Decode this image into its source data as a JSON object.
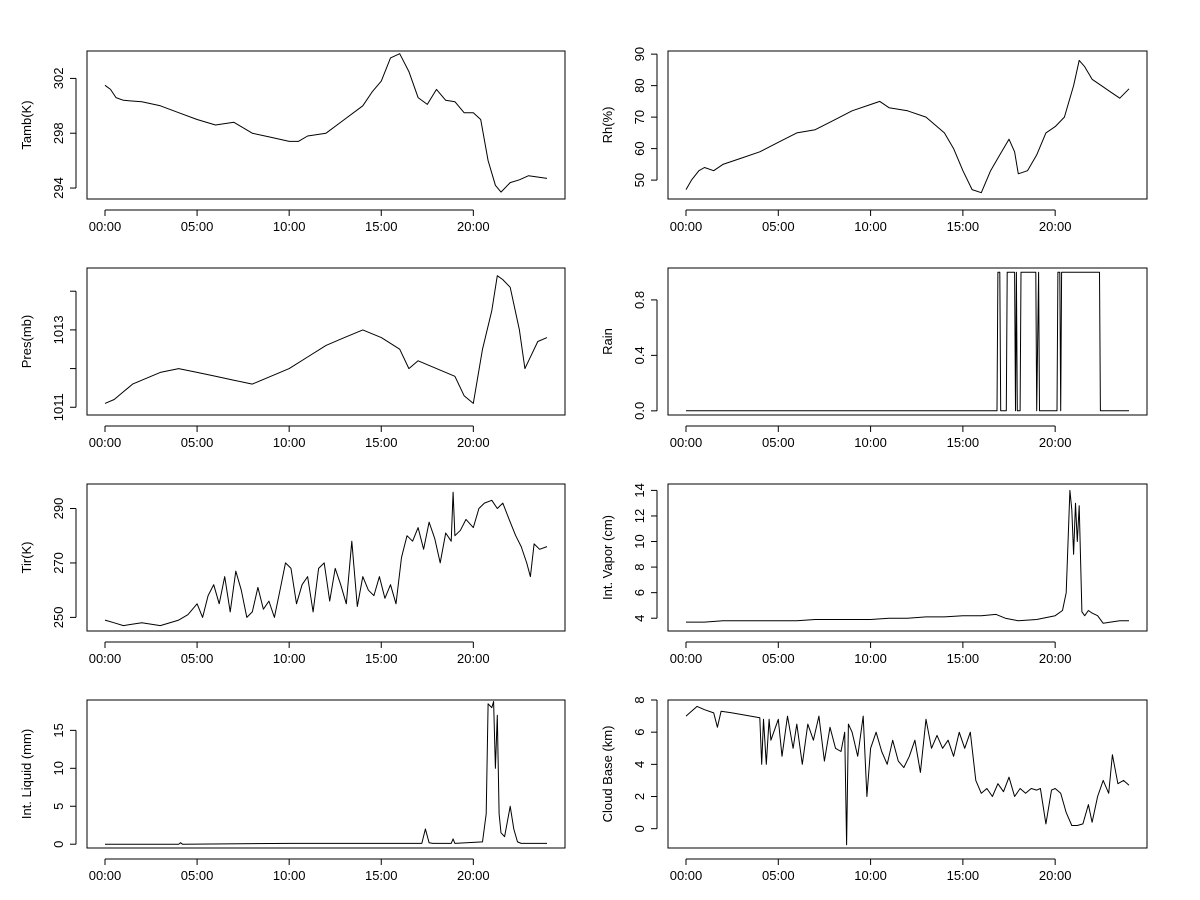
{
  "chart_data": [
    {
      "type": "line",
      "title": "",
      "xlabel": "",
      "ylabel": "Tamb(K)",
      "xlim": [
        0,
        24
      ],
      "ylim": [
        293.2,
        304.0
      ],
      "x_ticks": [
        0,
        5,
        10,
        15,
        20
      ],
      "x_tick_labels": [
        "00:00",
        "05:00",
        "10:00",
        "15:00",
        "20:00"
      ],
      "y_ticks": [
        294,
        298,
        302
      ],
      "y_tick_labels": [
        "294",
        "298",
        "302"
      ],
      "series": [
        {
          "x": [
            0,
            0.3,
            0.6,
            1,
            2,
            3,
            4,
            5,
            6,
            7,
            8,
            9,
            10,
            10.5,
            11,
            12,
            13,
            14,
            14.5,
            15,
            15.5,
            16,
            16.5,
            17,
            17.5,
            18,
            18.5,
            19,
            19.5,
            20,
            20.4,
            20.8,
            21.2,
            21.5,
            22,
            22.5,
            23,
            24
          ],
          "y": [
            301.5,
            301.2,
            300.6,
            300.4,
            300.3,
            300.0,
            299.5,
            299.0,
            298.6,
            298.8,
            298.0,
            297.7,
            297.4,
            297.4,
            297.8,
            298.0,
            299.0,
            300.0,
            301.0,
            301.8,
            303.5,
            303.8,
            302.5,
            300.6,
            300.1,
            301.2,
            300.4,
            300.3,
            299.5,
            299.5,
            299.0,
            296.0,
            294.2,
            293.7,
            294.4,
            294.6,
            294.9,
            294.7
          ]
        }
      ]
    },
    {
      "type": "line",
      "title": "",
      "xlabel": "",
      "ylabel": "Rh(%)",
      "xlim": [
        0,
        24
      ],
      "ylim": [
        44,
        91
      ],
      "x_ticks": [
        0,
        5,
        10,
        15,
        20
      ],
      "x_tick_labels": [
        "00:00",
        "05:00",
        "10:00",
        "15:00",
        "20:00"
      ],
      "y_ticks": [
        50,
        60,
        70,
        80,
        90
      ],
      "y_tick_labels": [
        "50",
        "60",
        "70",
        "80",
        "90"
      ],
      "series": [
        {
          "x": [
            0,
            0.3,
            0.7,
            1,
            1.5,
            2,
            3,
            4,
            5,
            6,
            7,
            8,
            9,
            10,
            10.5,
            11,
            12,
            13,
            14,
            14.5,
            15,
            15.5,
            16,
            16.5,
            17,
            17.5,
            17.8,
            18,
            18.5,
            19,
            19.5,
            20,
            20.5,
            21,
            21.3,
            21.6,
            22,
            22.5,
            23,
            23.5,
            24
          ],
          "y": [
            47,
            50,
            53,
            54,
            53,
            55,
            57,
            59,
            62,
            65,
            66,
            69,
            72,
            74,
            75,
            73,
            72,
            70,
            65,
            60,
            53,
            47,
            46,
            53,
            58,
            63,
            59,
            52,
            53,
            58,
            65,
            67,
            70,
            80,
            88,
            86,
            82,
            80,
            78,
            76,
            79
          ]
        }
      ]
    },
    {
      "type": "line",
      "title": "",
      "xlabel": "",
      "ylabel": "Pres(mb)",
      "xlim": [
        0,
        24
      ],
      "ylim": [
        1010.8,
        1014.6
      ],
      "x_ticks": [
        0,
        5,
        10,
        15,
        20
      ],
      "x_tick_labels": [
        "00:00",
        "05:00",
        "10:00",
        "15:00",
        "20:00"
      ],
      "y_ticks": [
        1011,
        1012,
        1013,
        1014
      ],
      "y_tick_labels": [
        "1011",
        "",
        "1013",
        ""
      ],
      "series": [
        {
          "x": [
            0,
            0.5,
            1,
            1.5,
            2,
            3,
            4,
            5,
            6,
            7,
            8,
            9,
            10,
            11,
            12,
            13,
            14,
            15,
            16,
            16.5,
            17,
            18,
            19,
            19.5,
            20,
            20.5,
            21,
            21.3,
            21.6,
            22,
            22.5,
            22.8,
            23,
            23.5,
            24
          ],
          "y": [
            1011.1,
            1011.2,
            1011.4,
            1011.6,
            1011.7,
            1011.9,
            1012.0,
            1011.9,
            1011.8,
            1011.7,
            1011.6,
            1011.8,
            1012.0,
            1012.3,
            1012.6,
            1012.8,
            1013.0,
            1012.8,
            1012.5,
            1012.0,
            1012.2,
            1012.0,
            1011.8,
            1011.3,
            1011.1,
            1012.5,
            1013.5,
            1014.4,
            1014.3,
            1014.1,
            1013.0,
            1012.0,
            1012.2,
            1012.7,
            1012.8
          ]
        }
      ]
    },
    {
      "type": "line",
      "title": "",
      "xlabel": "",
      "ylabel": "Rain",
      "xlim": [
        0,
        24
      ],
      "ylim": [
        -0.03,
        1.03
      ],
      "x_ticks": [
        0,
        5,
        10,
        15,
        20
      ],
      "x_tick_labels": [
        "00:00",
        "05:00",
        "10:00",
        "15:00",
        "20:00"
      ],
      "y_ticks": [
        0.0,
        0.4,
        0.8
      ],
      "y_tick_labels": [
        "0.0",
        "0.4",
        "0.8"
      ],
      "series": [
        {
          "x": [
            0,
            16.85,
            16.9,
            17.0,
            17.05,
            17.35,
            17.4,
            17.8,
            17.85,
            17.9,
            17.95,
            18.1,
            18.15,
            18.95,
            19.0,
            19.1,
            19.15,
            20.1,
            20.15,
            20.25,
            20.3,
            20.35,
            20.4,
            22.4,
            22.45,
            24
          ],
          "y": [
            0,
            0,
            1,
            1,
            0,
            0,
            1,
            1,
            0,
            1,
            0,
            0,
            1,
            1,
            0,
            1,
            0,
            0,
            1,
            1,
            0,
            1,
            1,
            1,
            0,
            0
          ]
        }
      ]
    },
    {
      "type": "line",
      "title": "",
      "xlabel": "",
      "ylabel": "Tir(K)",
      "xlim": [
        0,
        24
      ],
      "ylim": [
        245,
        299
      ],
      "x_ticks": [
        0,
        5,
        10,
        15,
        20
      ],
      "x_tick_labels": [
        "00:00",
        "05:00",
        "10:00",
        "15:00",
        "20:00"
      ],
      "y_ticks": [
        250,
        270,
        290
      ],
      "y_tick_labels": [
        "250",
        "270",
        "290"
      ],
      "series": [
        {
          "x": [
            0,
            0.5,
            1,
            2,
            3,
            4,
            4.5,
            5,
            5.3,
            5.6,
            5.9,
            6.2,
            6.5,
            6.8,
            7.1,
            7.4,
            7.7,
            8,
            8.3,
            8.6,
            8.9,
            9.2,
            9.5,
            9.8,
            10.1,
            10.4,
            10.7,
            11,
            11.3,
            11.6,
            11.9,
            12.2,
            12.5,
            12.8,
            13.1,
            13.4,
            13.7,
            14,
            14.3,
            14.6,
            14.9,
            15.2,
            15.5,
            15.8,
            16.1,
            16.4,
            16.7,
            17,
            17.3,
            17.6,
            17.9,
            18.2,
            18.5,
            18.8,
            18.9,
            19,
            19.3,
            19.6,
            20,
            20.3,
            20.6,
            21,
            21.3,
            21.6,
            22,
            22.3,
            22.6,
            22.9,
            23.1,
            23.3,
            23.6,
            24
          ],
          "y": [
            249,
            248,
            247,
            248,
            247,
            249,
            251,
            255,
            250,
            258,
            262,
            255,
            265,
            252,
            267,
            260,
            250,
            252,
            261,
            253,
            256,
            250,
            260,
            270,
            268,
            255,
            262,
            265,
            252,
            268,
            270,
            256,
            268,
            262,
            255,
            278,
            254,
            265,
            260,
            258,
            265,
            257,
            262,
            255,
            272,
            280,
            278,
            283,
            275,
            285,
            279,
            270,
            281,
            278,
            296,
            280,
            282,
            286,
            283,
            290,
            292,
            293,
            290,
            292,
            285,
            280,
            276,
            270,
            265,
            277,
            275,
            276
          ]
        }
      ]
    },
    {
      "type": "line",
      "title": "",
      "xlabel": "",
      "ylabel": "Int. Vapor (cm)",
      "xlim": [
        0,
        24
      ],
      "ylim": [
        3.0,
        14.5
      ],
      "x_ticks": [
        0,
        5,
        10,
        15,
        20
      ],
      "x_tick_labels": [
        "00:00",
        "05:00",
        "10:00",
        "15:00",
        "20:00"
      ],
      "y_ticks": [
        4,
        6,
        8,
        10,
        12,
        14
      ],
      "y_tick_labels": [
        "4",
        "6",
        "8",
        "10",
        "12",
        "14"
      ],
      "series": [
        {
          "x": [
            0,
            1,
            2,
            3,
            4,
            5,
            6,
            7,
            8,
            9,
            10,
            11,
            12,
            13,
            14,
            15,
            16,
            16.8,
            17.3,
            18,
            19,
            20,
            20.4,
            20.6,
            20.8,
            20.9,
            21.0,
            21.1,
            21.2,
            21.3,
            21.45,
            21.6,
            21.8,
            22.0,
            22.3,
            22.6,
            23,
            23.5,
            24
          ],
          "y": [
            3.7,
            3.7,
            3.8,
            3.8,
            3.8,
            3.8,
            3.8,
            3.9,
            3.9,
            3.9,
            3.9,
            4.0,
            4.0,
            4.1,
            4.1,
            4.2,
            4.2,
            4.3,
            4.0,
            3.8,
            3.9,
            4.2,
            4.6,
            6.0,
            14.0,
            12.5,
            9.0,
            13.0,
            10.0,
            12.8,
            4.5,
            4.2,
            4.6,
            4.4,
            4.2,
            3.6,
            3.7,
            3.8,
            3.8
          ]
        }
      ]
    },
    {
      "type": "line",
      "title": "",
      "xlabel": "",
      "ylabel": "Int. Liquid (mm)",
      "xlim": [
        0,
        24
      ],
      "ylim": [
        -0.5,
        19.0
      ],
      "x_ticks": [
        0,
        5,
        10,
        15,
        20
      ],
      "x_tick_labels": [
        "00:00",
        "05:00",
        "10:00",
        "15:00",
        "20:00"
      ],
      "y_ticks": [
        0,
        5,
        10,
        15
      ],
      "y_tick_labels": [
        "0",
        "5",
        "10",
        "15"
      ],
      "series": [
        {
          "x": [
            0,
            4,
            4.1,
            4.2,
            10,
            17.2,
            17.4,
            17.6,
            17.8,
            18.8,
            18.9,
            19.0,
            20.5,
            20.7,
            20.8,
            21.0,
            21.1,
            21.2,
            21.3,
            21.4,
            21.5,
            21.7,
            22.0,
            22.2,
            22.4,
            22.6,
            23,
            24
          ],
          "y": [
            0,
            0,
            0.2,
            0,
            0.1,
            0.1,
            2.0,
            0.2,
            0.1,
            0.1,
            0.7,
            0.1,
            0.3,
            4.0,
            18.5,
            18.0,
            18.8,
            10.0,
            17.0,
            4.0,
            1.5,
            1.0,
            5.0,
            2.0,
            0.3,
            0.1,
            0.1,
            0.1
          ]
        }
      ]
    },
    {
      "type": "line",
      "title": "",
      "xlabel": "",
      "ylabel": "Cloud Base (km)",
      "xlim": [
        0,
        24
      ],
      "ylim": [
        -1.2,
        8.0
      ],
      "x_ticks": [
        0,
        5,
        10,
        15,
        20
      ],
      "x_tick_labels": [
        "00:00",
        "05:00",
        "10:00",
        "15:00",
        "20:00"
      ],
      "y_ticks": [
        0,
        2,
        4,
        6,
        8
      ],
      "y_tick_labels": [
        "0",
        "2",
        "4",
        "6",
        "8"
      ],
      "series": [
        {
          "x": [
            0,
            0.3,
            0.6,
            1,
            1.5,
            1.7,
            1.9,
            2.5,
            3,
            3.5,
            4,
            4.1,
            4.2,
            4.35,
            4.5,
            4.6,
            5,
            5.2,
            5.5,
            5.8,
            6,
            6.3,
            6.6,
            6.9,
            7.2,
            7.5,
            7.8,
            8.1,
            8.4,
            8.6,
            8.7,
            8.8,
            9,
            9.3,
            9.6,
            9.8,
            10,
            10.3,
            10.6,
            10.9,
            11.2,
            11.5,
            11.8,
            12.1,
            12.4,
            12.7,
            13,
            13.3,
            13.6,
            13.9,
            14.2,
            14.5,
            14.8,
            15.1,
            15.4,
            15.7,
            16,
            16.3,
            16.6,
            16.9,
            17.2,
            17.5,
            17.8,
            18.1,
            18.4,
            18.7,
            19,
            19.2,
            19.5,
            19.8,
            20,
            20.3,
            20.6,
            20.9,
            21.2,
            21.5,
            21.8,
            22,
            22.3,
            22.6,
            22.9,
            23.1,
            23.4,
            23.7,
            24
          ],
          "y": [
            7.0,
            7.3,
            7.6,
            7.4,
            7.2,
            6.3,
            7.3,
            7.2,
            7.1,
            7.0,
            6.9,
            4.0,
            6.8,
            4.0,
            6.8,
            5.5,
            6.8,
            4.5,
            7.0,
            5.0,
            6.5,
            4.0,
            6.5,
            5.5,
            7.0,
            4.2,
            6.3,
            5.0,
            4.8,
            6.0,
            -1.0,
            6.5,
            6.0,
            4.5,
            7.0,
            2.0,
            5.0,
            6.0,
            4.8,
            4.0,
            5.5,
            4.2,
            3.8,
            4.5,
            5.5,
            3.5,
            6.8,
            5.0,
            5.8,
            5.0,
            5.5,
            4.5,
            6.0,
            5.0,
            6.0,
            3.0,
            2.2,
            2.5,
            2.0,
            2.8,
            2.3,
            3.2,
            2.0,
            2.5,
            2.2,
            2.5,
            2.4,
            2.5,
            0.3,
            2.4,
            2.5,
            2.2,
            1.0,
            0.2,
            0.2,
            0.3,
            1.5,
            0.4,
            2.0,
            3.0,
            2.2,
            4.6,
            2.8,
            3.0,
            2.7
          ]
        }
      ]
    }
  ]
}
